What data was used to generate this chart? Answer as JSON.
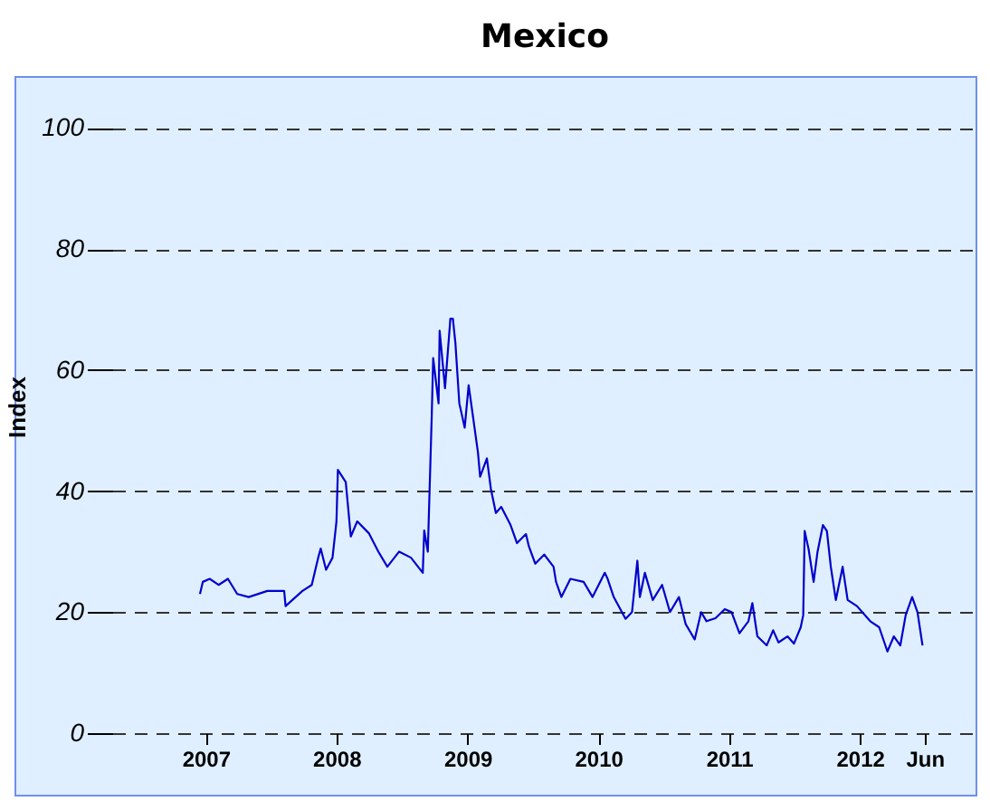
{
  "chart_data": {
    "type": "line",
    "title": "Mexico",
    "ylabel": "Index",
    "color": "#0000cc",
    "grid": "y",
    "xlim": [
      "2006-04-15",
      "2012-11-24"
    ],
    "ylim": [
      0,
      108
    ],
    "xticks": [
      {
        "value": "2007-01-01",
        "label": "2007"
      },
      {
        "value": "2008-01-01",
        "label": "2008"
      },
      {
        "value": "2009-01-01",
        "label": "2009"
      },
      {
        "value": "2010-01-01",
        "label": "2010"
      },
      {
        "value": "2011-01-01",
        "label": "2011"
      },
      {
        "value": "2012-01-01",
        "label": "2012"
      },
      {
        "value": "2012-06-30",
        "label": "Jun"
      }
    ],
    "yticks": [
      0,
      20,
      40,
      60,
      80,
      100
    ],
    "x": [
      "2006-12-16",
      "2006-12-24",
      "2007-01-12",
      "2007-02-06",
      "2007-03-04",
      "2007-03-30",
      "2007-05-01",
      "2007-06-22",
      "2007-08-08",
      "2007-08-12",
      "2007-09-28",
      "2007-10-24",
      "2007-11-11",
      "2007-11-18",
      "2007-12-03",
      "2007-12-21",
      "2008-01-01",
      "2008-01-05",
      "2008-01-27",
      "2008-02-10",
      "2008-02-28",
      "2008-04-01",
      "2008-04-27",
      "2008-05-22",
      "2008-06-24",
      "2008-07-27",
      "2008-08-29",
      "2008-09-02",
      "2008-09-12",
      "2008-09-23",
      "2008-09-27",
      "2008-10-12",
      "2008-10-15",
      "2008-10-30",
      "2008-11-14",
      "2008-11-21",
      "2008-11-28",
      "2008-12-09",
      "2008-12-24",
      "2009-01-04",
      "2009-01-30",
      "2009-02-05",
      "2009-02-24",
      "2009-03-07",
      "2009-03-21",
      "2009-04-05",
      "2009-05-01",
      "2009-05-19",
      "2009-06-13",
      "2009-06-21",
      "2009-07-09",
      "2009-08-03",
      "2009-08-29",
      "2009-09-05",
      "2009-09-20",
      "2009-10-15",
      "2009-11-21",
      "2009-12-16",
      "2010-01-19",
      "2010-01-27",
      "2010-02-13",
      "2010-03-18",
      "2010-04-05",
      "2010-04-20",
      "2010-04-27",
      "2010-05-11",
      "2010-06-02",
      "2010-06-28",
      "2010-07-20",
      "2010-08-14",
      "2010-09-02",
      "2010-09-27",
      "2010-10-15",
      "2010-10-30",
      "2010-11-24",
      "2010-12-20",
      "2011-01-08",
      "2011-01-30",
      "2011-02-24",
      "2011-03-07",
      "2011-03-21",
      "2011-04-16",
      "2011-05-04",
      "2011-05-19",
      "2011-06-13",
      "2011-07-01",
      "2011-07-20",
      "2011-07-27",
      "2011-07-31",
      "2011-08-11",
      "2011-08-25",
      "2011-09-05",
      "2011-09-20",
      "2011-10-01",
      "2011-10-12",
      "2011-10-26",
      "2011-11-14",
      "2011-11-28",
      "2011-12-24",
      "2012-01-30",
      "2012-02-24",
      "2012-03-18",
      "2012-04-05",
      "2012-04-23",
      "2012-05-08",
      "2012-05-26",
      "2012-06-10",
      "2012-06-24"
    ],
    "values": [
      23,
      25,
      25.5,
      24.5,
      25.5,
      23,
      22.5,
      23.5,
      23.5,
      21,
      23.5,
      24.5,
      29,
      30.5,
      27,
      29,
      35,
      43.5,
      41.5,
      32.5,
      35,
      33,
      30,
      27.5,
      30,
      29,
      26.5,
      33.5,
      30,
      52.5,
      62,
      54.5,
      66.5,
      57,
      68.5,
      68.5,
      64.5,
      54.5,
      50.5,
      57.5,
      46.4,
      42.4,
      45.4,
      40.4,
      36.4,
      37.4,
      34.4,
      31.4,
      32.9,
      30.9,
      28,
      29.5,
      27.5,
      25,
      22.5,
      25.5,
      25,
      22.5,
      26.5,
      25.5,
      22.5,
      18.9,
      20,
      28.5,
      22.5,
      26.5,
      22,
      24.5,
      20,
      22.5,
      18,
      15.5,
      20,
      18.5,
      19,
      20.5,
      20,
      16.5,
      18.5,
      21.5,
      16,
      14.5,
      17,
      15,
      16,
      14.8,
      17.5,
      19.5,
      33.4,
      30.4,
      25,
      30,
      34.4,
      33.4,
      27.5,
      22,
      27.5,
      22,
      21,
      18.5,
      17.5,
      13.5,
      16,
      14.5,
      19.5,
      22.5,
      20,
      14.5
    ]
  }
}
